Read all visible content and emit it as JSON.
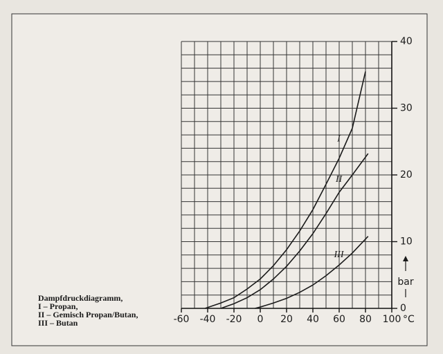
{
  "chart_data": {
    "type": "line",
    "caption": [
      "Dampfdruckdiagramm,",
      "I – Propan,",
      "II – Gemisch Propan/Butan,",
      "III – Butan"
    ],
    "x_unit": "°C",
    "y_unit": "bar",
    "xlim": [
      -60,
      100
    ],
    "ylim": [
      0,
      40
    ],
    "xticks": [
      -60,
      -40,
      -20,
      0,
      20,
      40,
      60,
      80,
      100
    ],
    "yticks": [
      0,
      10,
      20,
      30,
      40
    ],
    "xgrid": [
      -60,
      -50,
      -40,
      -30,
      -20,
      -10,
      0,
      10,
      20,
      30,
      40,
      50,
      60,
      70,
      80,
      90,
      100
    ],
    "ygrid": [
      0,
      2,
      4,
      6,
      8,
      10,
      12,
      14,
      16,
      18,
      20,
      22,
      24,
      26,
      28,
      30,
      32,
      34,
      36,
      38,
      40
    ],
    "grid": true,
    "series": [
      {
        "name": "I",
        "color": "#1a1a1a",
        "x": [
          -42,
          -30,
          -20,
          -10,
          0,
          10,
          20,
          30,
          40,
          50,
          60,
          70,
          80
        ],
        "values": [
          0,
          0.8,
          1.6,
          2.9,
          4.4,
          6.4,
          8.8,
          11.6,
          14.8,
          18.6,
          22.5,
          27,
          35.5
        ]
      },
      {
        "name": "II",
        "color": "#1a1a1a",
        "x": [
          -30,
          -20,
          -10,
          0,
          10,
          20,
          30,
          40,
          50,
          60,
          70,
          82
        ],
        "values": [
          0,
          0.7,
          1.6,
          2.8,
          4.4,
          6.3,
          8.6,
          11.2,
          14.2,
          17.4,
          20,
          23.2
        ]
      },
      {
        "name": "III",
        "color": "#1a1a1a",
        "x": [
          -4,
          0,
          10,
          20,
          30,
          40,
          50,
          60,
          70,
          82
        ],
        "values": [
          0,
          0.2,
          0.8,
          1.5,
          2.4,
          3.5,
          4.9,
          6.5,
          8.3,
          10.8
        ]
      }
    ]
  }
}
